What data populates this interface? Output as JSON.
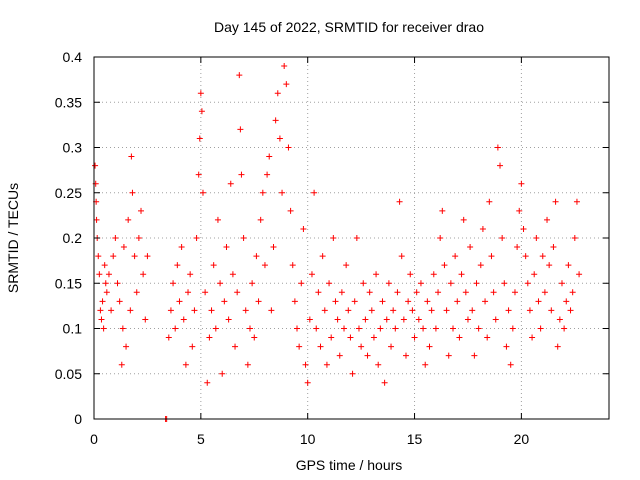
{
  "chart_data": {
    "type": "scatter",
    "title": "Day 145 of 2022, SRMTID for receiver drao",
    "xlabel": "GPS time / hours",
    "ylabel": "SRMTID / TECUs",
    "xlim": [
      0,
      24.1
    ],
    "ylim": [
      0,
      0.4
    ],
    "xticks": [
      0,
      5,
      10,
      15,
      20
    ],
    "xtick_labels": [
      "0",
      "5",
      "10",
      "15",
      "20"
    ],
    "yticks": [
      0,
      0.05,
      0.1,
      0.15,
      0.2,
      0.25,
      0.3,
      0.35,
      0.4
    ],
    "ytick_labels": [
      "0",
      "0.05",
      "0.1",
      "0.15",
      "0.2",
      "0.25",
      "0.3",
      "0.35",
      "0.4"
    ],
    "grid": true,
    "marker": "+",
    "color": "#ff0000",
    "series": [
      {
        "name": "SRMTID",
        "points": [
          [
            0.05,
            0.28
          ],
          [
            0.08,
            0.26
          ],
          [
            0.1,
            0.24
          ],
          [
            0.12,
            0.22
          ],
          [
            0.15,
            0.2
          ],
          [
            0.2,
            0.18
          ],
          [
            0.25,
            0.16
          ],
          [
            0.3,
            0.12
          ],
          [
            0.35,
            0.11
          ],
          [
            0.4,
            0.13
          ],
          [
            0.45,
            0.1
          ],
          [
            0.5,
            0.17
          ],
          [
            0.55,
            0.15
          ],
          [
            0.6,
            0.14
          ],
          [
            0.7,
            0.16
          ],
          [
            0.8,
            0.12
          ],
          [
            0.9,
            0.18
          ],
          [
            1.0,
            0.2
          ],
          [
            1.1,
            0.15
          ],
          [
            1.2,
            0.13
          ],
          [
            1.3,
            0.06
          ],
          [
            1.35,
            0.1
          ],
          [
            1.4,
            0.19
          ],
          [
            1.5,
            0.08
          ],
          [
            1.6,
            0.22
          ],
          [
            1.7,
            0.12
          ],
          [
            1.75,
            0.29
          ],
          [
            1.8,
            0.25
          ],
          [
            1.9,
            0.18
          ],
          [
            2.0,
            0.14
          ],
          [
            2.1,
            0.2
          ],
          [
            2.2,
            0.23
          ],
          [
            2.3,
            0.16
          ],
          [
            2.4,
            0.11
          ],
          [
            2.5,
            0.18
          ],
          [
            3.35,
            0.0
          ],
          [
            3.4,
            0.0
          ],
          [
            3.5,
            0.09
          ],
          [
            3.6,
            0.12
          ],
          [
            3.7,
            0.15
          ],
          [
            3.8,
            0.1
          ],
          [
            3.9,
            0.17
          ],
          [
            4.0,
            0.13
          ],
          [
            4.1,
            0.19
          ],
          [
            4.2,
            0.11
          ],
          [
            4.3,
            0.06
          ],
          [
            4.4,
            0.14
          ],
          [
            4.5,
            0.16
          ],
          [
            4.6,
            0.08
          ],
          [
            4.7,
            0.12
          ],
          [
            4.8,
            0.2
          ],
          [
            4.9,
            0.27
          ],
          [
            4.95,
            0.31
          ],
          [
            5.0,
            0.36
          ],
          [
            5.05,
            0.34
          ],
          [
            5.1,
            0.25
          ],
          [
            5.2,
            0.14
          ],
          [
            5.3,
            0.04
          ],
          [
            5.4,
            0.09
          ],
          [
            5.5,
            0.12
          ],
          [
            5.6,
            0.17
          ],
          [
            5.7,
            0.1
          ],
          [
            5.8,
            0.22
          ],
          [
            5.9,
            0.15
          ],
          [
            6.0,
            0.05
          ],
          [
            6.1,
            0.13
          ],
          [
            6.2,
            0.19
          ],
          [
            6.3,
            0.11
          ],
          [
            6.4,
            0.26
          ],
          [
            6.5,
            0.16
          ],
          [
            6.6,
            0.08
          ],
          [
            6.7,
            0.14
          ],
          [
            6.8,
            0.38
          ],
          [
            6.85,
            0.32
          ],
          [
            6.9,
            0.27
          ],
          [
            7.0,
            0.2
          ],
          [
            7.1,
            0.12
          ],
          [
            7.2,
            0.06
          ],
          [
            7.3,
            0.1
          ],
          [
            7.4,
            0.15
          ],
          [
            7.5,
            0.09
          ],
          [
            7.6,
            0.18
          ],
          [
            7.7,
            0.13
          ],
          [
            7.8,
            0.22
          ],
          [
            7.9,
            0.25
          ],
          [
            8.0,
            0.17
          ],
          [
            8.1,
            0.27
          ],
          [
            8.2,
            0.29
          ],
          [
            8.3,
            0.12
          ],
          [
            8.4,
            0.19
          ],
          [
            8.5,
            0.33
          ],
          [
            8.6,
            0.36
          ],
          [
            8.7,
            0.31
          ],
          [
            8.8,
            0.25
          ],
          [
            8.9,
            0.39
          ],
          [
            9.0,
            0.37
          ],
          [
            9.1,
            0.3
          ],
          [
            9.2,
            0.23
          ],
          [
            9.3,
            0.17
          ],
          [
            9.4,
            0.13
          ],
          [
            9.5,
            0.1
          ],
          [
            9.6,
            0.08
          ],
          [
            9.7,
            0.15
          ],
          [
            9.8,
            0.21
          ],
          [
            9.9,
            0.06
          ],
          [
            10.0,
            0.04
          ],
          [
            10.1,
            0.11
          ],
          [
            10.2,
            0.16
          ],
          [
            10.3,
            0.25
          ],
          [
            10.4,
            0.1
          ],
          [
            10.5,
            0.14
          ],
          [
            10.6,
            0.08
          ],
          [
            10.7,
            0.18
          ],
          [
            10.8,
            0.12
          ],
          [
            10.9,
            0.06
          ],
          [
            11.0,
            0.15
          ],
          [
            11.1,
            0.09
          ],
          [
            11.2,
            0.2
          ],
          [
            11.3,
            0.13
          ],
          [
            11.4,
            0.11
          ],
          [
            11.5,
            0.07
          ],
          [
            11.6,
            0.14
          ],
          [
            11.7,
            0.1
          ],
          [
            11.8,
            0.17
          ],
          [
            11.9,
            0.12
          ],
          [
            12.0,
            0.09
          ],
          [
            12.1,
            0.05
          ],
          [
            12.2,
            0.13
          ],
          [
            12.3,
            0.2
          ],
          [
            12.4,
            0.1
          ],
          [
            12.5,
            0.08
          ],
          [
            12.6,
            0.15
          ],
          [
            12.7,
            0.11
          ],
          [
            12.8,
            0.07
          ],
          [
            12.9,
            0.14
          ],
          [
            13.0,
            0.12
          ],
          [
            13.1,
            0.09
          ],
          [
            13.2,
            0.16
          ],
          [
            13.3,
            0.06
          ],
          [
            13.4,
            0.1
          ],
          [
            13.5,
            0.13
          ],
          [
            13.6,
            0.04
          ],
          [
            13.7,
            0.11
          ],
          [
            13.8,
            0.15
          ],
          [
            13.9,
            0.08
          ],
          [
            14.0,
            0.12
          ],
          [
            14.1,
            0.1
          ],
          [
            14.2,
            0.14
          ],
          [
            14.3,
            0.24
          ],
          [
            14.4,
            0.18
          ],
          [
            14.5,
            0.11
          ],
          [
            14.6,
            0.07
          ],
          [
            14.7,
            0.13
          ],
          [
            14.8,
            0.16
          ],
          [
            14.9,
            0.12
          ],
          [
            15.0,
            0.09
          ],
          [
            15.1,
            0.14
          ],
          [
            15.2,
            0.11
          ],
          [
            15.3,
            0.15
          ],
          [
            15.4,
            0.1
          ],
          [
            15.5,
            0.06
          ],
          [
            15.6,
            0.13
          ],
          [
            15.7,
            0.08
          ],
          [
            15.8,
            0.12
          ],
          [
            15.9,
            0.16
          ],
          [
            16.0,
            0.1
          ],
          [
            16.1,
            0.14
          ],
          [
            16.2,
            0.2
          ],
          [
            16.3,
            0.23
          ],
          [
            16.4,
            0.17
          ],
          [
            16.5,
            0.12
          ],
          [
            16.6,
            0.07
          ],
          [
            16.7,
            0.15
          ],
          [
            16.8,
            0.1
          ],
          [
            16.9,
            0.18
          ],
          [
            17.0,
            0.13
          ],
          [
            17.1,
            0.09
          ],
          [
            17.2,
            0.16
          ],
          [
            17.3,
            0.22
          ],
          [
            17.4,
            0.14
          ],
          [
            17.5,
            0.11
          ],
          [
            17.6,
            0.19
          ],
          [
            17.7,
            0.12
          ],
          [
            17.8,
            0.07
          ],
          [
            17.9,
            0.15
          ],
          [
            18.0,
            0.1
          ],
          [
            18.1,
            0.17
          ],
          [
            18.2,
            0.21
          ],
          [
            18.3,
            0.13
          ],
          [
            18.4,
            0.09
          ],
          [
            18.5,
            0.24
          ],
          [
            18.6,
            0.18
          ],
          [
            18.7,
            0.14
          ],
          [
            18.8,
            0.11
          ],
          [
            18.9,
            0.3
          ],
          [
            19.0,
            0.28
          ],
          [
            19.1,
            0.2
          ],
          [
            19.2,
            0.15
          ],
          [
            19.3,
            0.08
          ],
          [
            19.4,
            0.12
          ],
          [
            19.5,
            0.06
          ],
          [
            19.6,
            0.1
          ],
          [
            19.7,
            0.14
          ],
          [
            19.8,
            0.19
          ],
          [
            19.9,
            0.23
          ],
          [
            20.0,
            0.26
          ],
          [
            20.1,
            0.21
          ],
          [
            20.2,
            0.18
          ],
          [
            20.3,
            0.15
          ],
          [
            20.4,
            0.12
          ],
          [
            20.5,
            0.09
          ],
          [
            20.6,
            0.16
          ],
          [
            20.7,
            0.2
          ],
          [
            20.8,
            0.13
          ],
          [
            20.9,
            0.1
          ],
          [
            21.0,
            0.18
          ],
          [
            21.1,
            0.14
          ],
          [
            21.2,
            0.22
          ],
          [
            21.3,
            0.17
          ],
          [
            21.4,
            0.12
          ],
          [
            21.5,
            0.19
          ],
          [
            21.6,
            0.24
          ],
          [
            21.7,
            0.08
          ],
          [
            21.8,
            0.11
          ],
          [
            21.9,
            0.15
          ],
          [
            22.0,
            0.1
          ],
          [
            22.1,
            0.13
          ],
          [
            22.2,
            0.17
          ],
          [
            22.3,
            0.12
          ],
          [
            22.4,
            0.14
          ],
          [
            22.5,
            0.2
          ],
          [
            22.6,
            0.24
          ],
          [
            22.7,
            0.16
          ]
        ]
      }
    ]
  }
}
